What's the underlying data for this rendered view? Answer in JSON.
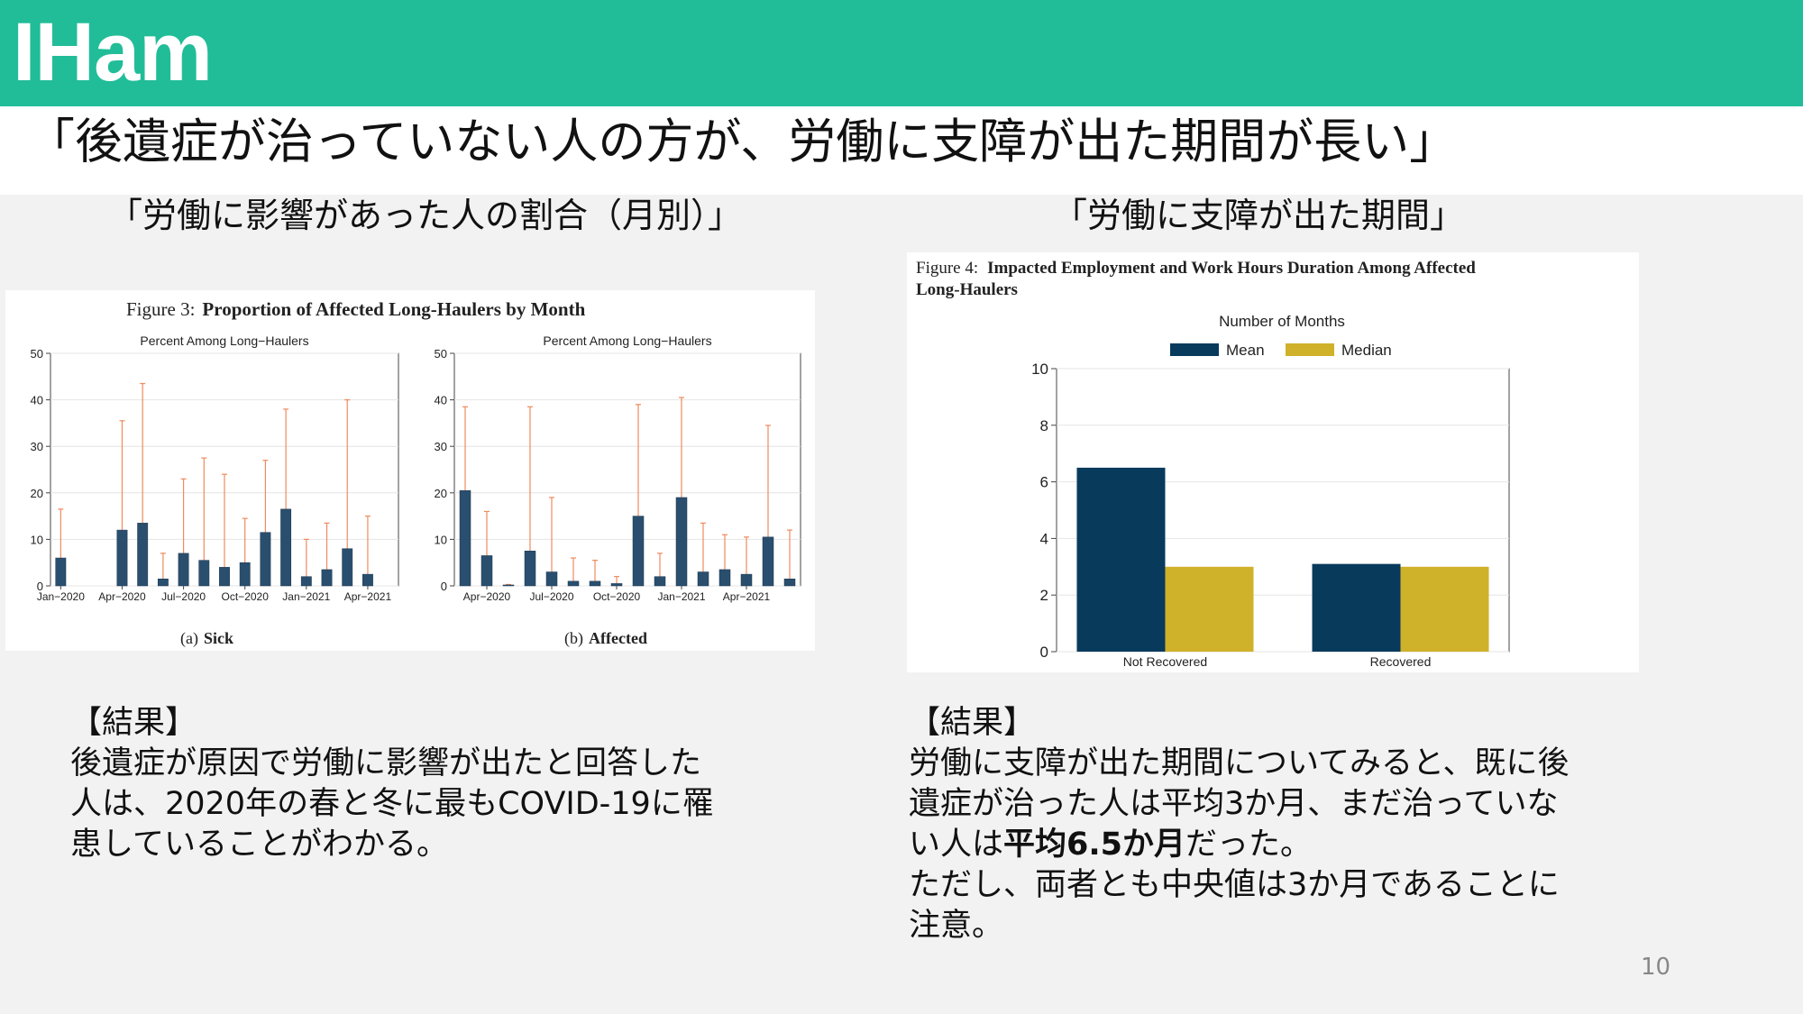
{
  "brand": {
    "logo_text": "IHam",
    "accent": "#21bd98"
  },
  "slide": {
    "title": "「後遺症が治っていない人の方が、労働に支障が出た期間が長い」",
    "page_number": "10"
  },
  "left": {
    "heading": "「労働に影響があった人の割合（月別）」",
    "figure_title_prefix": "Figure 3:",
    "figure_title_bold": "Proportion of Affected Long-Haulers by Month",
    "result_header": "【結果】",
    "result_lines": [
      "後遺症が原因で労働に影響が出たと回答した",
      "人は、2020年の春と冬に最もCOVID-19に罹",
      "患していることがわかる。"
    ]
  },
  "right": {
    "heading": "「労働に支障が出た期間」",
    "figure_title_prefix": "Figure 4:",
    "figure_title_rest": "Impacted Employment and Work Hours Duration Among Affected",
    "figure_title_line2": "Long-Haulers",
    "result_header": "【結果】",
    "result_line1": "労働に支障が出た期間についてみると、既に後",
    "result_line2": "遺症が治った人は平均3か月、まだ治っていな",
    "result_line3_pre": "い人は",
    "result_line3_bold": "平均6.5か月",
    "result_line3_post": "だった。",
    "result_line4": "ただし、両者とも中央値は3か月であることに",
    "result_line5": "注意。"
  },
  "chart_data": [
    {
      "type": "bar",
      "title": "Percent Among Long−Haulers",
      "subtitle": "(a) Sick",
      "caption_letter": "(a)",
      "caption_word": "Sick",
      "ylim": [
        0,
        50
      ],
      "yticks": [
        "0",
        "10",
        "20",
        "30",
        "40",
        "50"
      ],
      "xtick_labels": [
        "Jan−2020",
        "Apr−2020",
        "Jul−2020",
        "Oct−2020",
        "Jan−2021",
        "Apr−2021"
      ],
      "bar_color": "#2a4f6e",
      "errorbar_color": "#f08a5d",
      "x": [
        "2020-01",
        "2020-02",
        "2020-03",
        "2020-04",
        "2020-05",
        "2020-06",
        "2020-07",
        "2020-08",
        "2020-09",
        "2020-10",
        "2020-11",
        "2020-12",
        "2021-01",
        "2021-02",
        "2021-03",
        "2021-04",
        "2021-05"
      ],
      "values": [
        6,
        0,
        0,
        12,
        13.5,
        1.5,
        7,
        5.5,
        4,
        5,
        11.5,
        16.5,
        2,
        3.5,
        8,
        2.5,
        0
      ],
      "upper": [
        16.5,
        0,
        0,
        35.5,
        43.5,
        7,
        23,
        27.5,
        24,
        14.5,
        27,
        38,
        10,
        13.5,
        40,
        15,
        0
      ]
    },
    {
      "type": "bar",
      "title": "Percent Among Long−Haulers",
      "subtitle": "(b) Affected",
      "caption_letter": "(b)",
      "caption_word": "Affected",
      "ylim": [
        0,
        50
      ],
      "yticks": [
        "0",
        "10",
        "20",
        "30",
        "40",
        "50"
      ],
      "xtick_labels": [
        "Apr−2020",
        "Jul−2020",
        "Oct−2020",
        "Jan−2021",
        "Apr−2021"
      ],
      "bar_color": "#2a4f6e",
      "errorbar_color": "#f08a5d",
      "x": [
        "2020-03",
        "2020-04",
        "2020-05",
        "2020-06",
        "2020-07",
        "2020-08",
        "2020-09",
        "2020-10",
        "2020-11",
        "2020-12",
        "2021-01",
        "2021-02",
        "2021-03",
        "2021-04",
        "2021-05",
        "2021-06"
      ],
      "values": [
        20.5,
        6.5,
        0.2,
        7.5,
        3,
        1,
        1,
        0.5,
        15,
        2,
        19,
        3,
        3.5,
        2.5,
        10.5,
        1.5
      ],
      "upper": [
        38.5,
        16,
        0.3,
        38.5,
        19,
        6,
        5.5,
        2,
        39,
        7,
        40.5,
        13.5,
        11,
        10.5,
        34.5,
        12
      ]
    },
    {
      "type": "bar",
      "title": "Number of Months",
      "categories": [
        "Not Recovered",
        "Recovered"
      ],
      "series": [
        {
          "name": "Mean",
          "values": [
            6.5,
            3.1
          ],
          "color": "#083a5c"
        },
        {
          "name": "Median",
          "values": [
            3,
            3
          ],
          "color": "#cfb12a"
        }
      ],
      "ylim": [
        0,
        10
      ],
      "yticks": [
        "0",
        "2",
        "4",
        "6",
        "8",
        "10"
      ],
      "legend_position": "top"
    }
  ]
}
